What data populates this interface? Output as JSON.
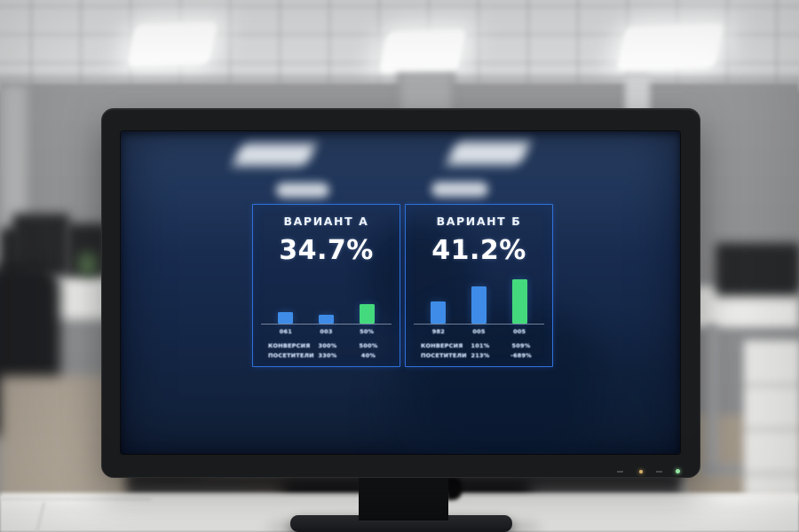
{
  "screen": {
    "panels": [
      {
        "id": "variant-a",
        "title": "ВАРИАНТ А",
        "value": "34.7%",
        "bars": [
          {
            "label": "061",
            "height_pct": 24,
            "color": "blue"
          },
          {
            "label": "003",
            "height_pct": 17,
            "color": "blue"
          },
          {
            "label": "50%",
            "height_pct": 39,
            "color": "green"
          }
        ],
        "table": {
          "rows": [
            {
              "label": "КОНВЕРСИЯ",
              "values": [
                "300%",
                "500%"
              ]
            },
            {
              "label": "ПОСЕТИТЕЛИ",
              "values": [
                "330%",
                "40%"
              ]
            }
          ]
        }
      },
      {
        "id": "variant-b",
        "title": "ВАРИАНТ Б",
        "value": "41.2%",
        "bars": [
          {
            "label": "982",
            "height_pct": 45,
            "color": "blue"
          },
          {
            "label": "005",
            "height_pct": 75,
            "color": "blue"
          },
          {
            "label": "005",
            "height_pct": 90,
            "color": "green"
          }
        ],
        "table": {
          "rows": [
            {
              "label": "КОНВЕРСИЯ",
              "values": [
                "101%",
                "509%"
              ]
            },
            {
              "label": "ПОСЕТИТЕЛИ",
              "values": [
                "213%",
                "-689%"
              ]
            }
          ]
        }
      }
    ],
    "colors": {
      "bar_blue": "#3e8ce8",
      "bar_green": "#43d97c",
      "panel_border": "#2e72d9",
      "screen_background": "#16294a"
    }
  },
  "monitor": {
    "indicator_leds": [
      {
        "name": "status-led",
        "color": "#d8b36a"
      },
      {
        "name": "power-led",
        "color": "#97eba6"
      }
    ]
  },
  "chart_data": [
    {
      "type": "bar",
      "title": "ВАРИАНТ А",
      "headline_value": "34.7%",
      "categories": [
        "061",
        "003",
        "50%"
      ],
      "values": [
        24,
        17,
        39
      ],
      "series_colors": [
        "blue",
        "blue",
        "green"
      ],
      "xlabel": "",
      "ylabel": "",
      "ylim": [
        0,
        100
      ],
      "units": "relative bar height, % of chart area (axis unlabeled in source)",
      "grid": false,
      "legend": false
    },
    {
      "type": "bar",
      "title": "ВАРИАНТ Б",
      "headline_value": "41.2%",
      "categories": [
        "982",
        "005",
        "005"
      ],
      "values": [
        45,
        75,
        90
      ],
      "series_colors": [
        "blue",
        "blue",
        "green"
      ],
      "xlabel": "",
      "ylabel": "",
      "ylim": [
        0,
        100
      ],
      "units": "relative bar height, % of chart area (axis unlabeled in source)",
      "grid": false,
      "legend": false
    }
  ]
}
